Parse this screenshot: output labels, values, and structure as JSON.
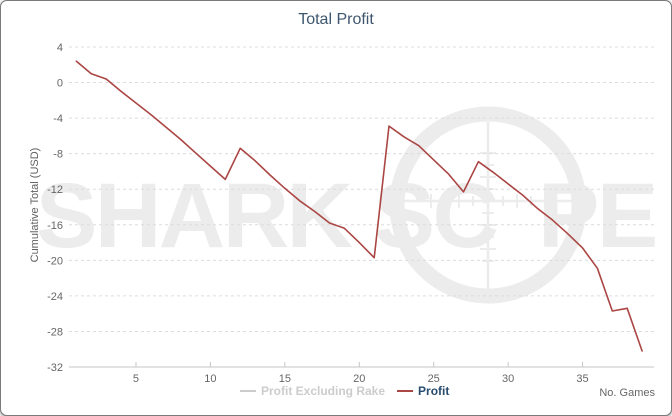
{
  "chart_data": {
    "type": "line",
    "title": "Total Profit",
    "ylabel": "Cumulative Total (USD)",
    "xlabel": "No. Games",
    "x": [
      1,
      2,
      3,
      4,
      5,
      6,
      7,
      8,
      9,
      10,
      11,
      12,
      13,
      14,
      15,
      16,
      17,
      18,
      19,
      20,
      21,
      22,
      23,
      24,
      25,
      26,
      27,
      28,
      29,
      30,
      31,
      32,
      33,
      34,
      35,
      36,
      37,
      38,
      39
    ],
    "series": [
      {
        "name": "Profit Excluding Rake",
        "color": "#cccccc",
        "enabled": false,
        "values": []
      },
      {
        "name": "Profit",
        "color": "#aa4643",
        "enabled": true,
        "values": [
          2.4,
          1.0,
          0.4,
          -1.0,
          -2.3,
          -3.6,
          -5.0,
          -6.4,
          -7.9,
          -9.4,
          -10.9,
          -7.4,
          -8.8,
          -10.4,
          -11.9,
          -13.3,
          -14.5,
          -15.8,
          -16.4,
          -18.0,
          -19.7,
          -4.9,
          -6.1,
          -7.1,
          -8.7,
          -10.3,
          -12.3,
          -8.9,
          -10.1,
          -11.4,
          -12.7,
          -14.2,
          -15.5,
          -17.0,
          -18.6,
          -20.9,
          -25.7,
          -25.4,
          -30.2
        ]
      }
    ],
    "x_ticks": [
      5,
      10,
      15,
      20,
      25,
      30,
      35
    ],
    "y_ticks": [
      4,
      0,
      -4,
      -8,
      -12,
      -16,
      -20,
      -24,
      -28,
      -32
    ],
    "xlim": [
      0.5,
      39.8
    ],
    "ylim": [
      -32,
      4
    ],
    "grid": "horizontal-dashed",
    "legend_position": "bottom-center"
  },
  "legend": {
    "items": [
      {
        "label": "Profit Excluding Rake",
        "swatch_color": "#cccccc",
        "text_color": "#cccccc",
        "enabled": false
      },
      {
        "label": "Profit",
        "swatch_color": "#aa4643",
        "text_color": "#274b6d",
        "enabled": true
      }
    ]
  },
  "watermark": {
    "text_left": "SHARK SC",
    "text_right": "PE",
    "color": "#ececec"
  }
}
